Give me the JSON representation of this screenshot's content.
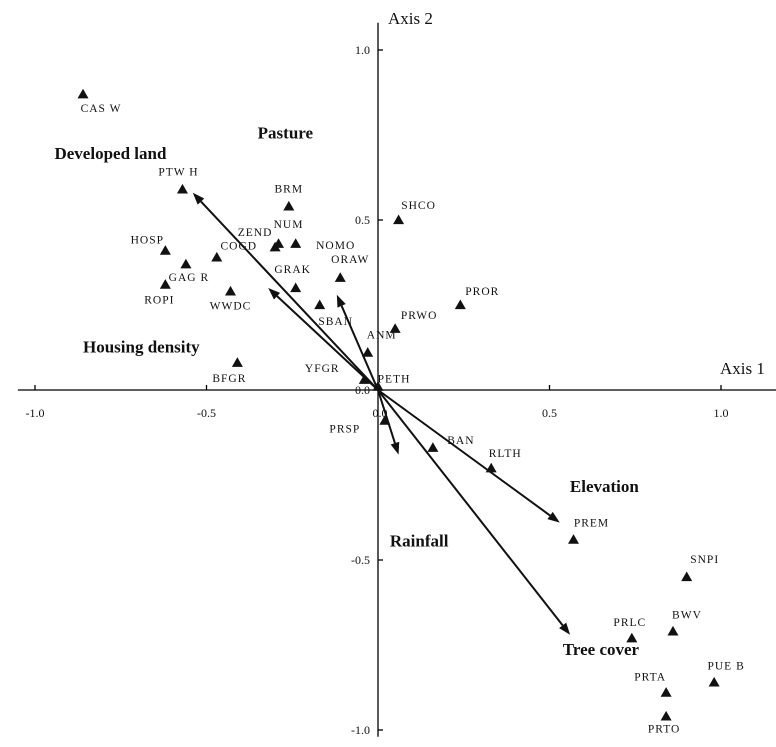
{
  "chart_data": {
    "type": "scatter",
    "title": "",
    "xlabel": "Axis 1",
    "ylabel": "Axis 2",
    "xlim": [
      -1.05,
      1.05
    ],
    "ylim": [
      -1.02,
      1.08
    ],
    "x_ticks": [
      {
        "value": -1.0,
        "label": "-1.0"
      },
      {
        "value": -0.5,
        "label": "-0.5"
      },
      {
        "value": 0.0,
        "label": "0.0"
      },
      {
        "value": 0.5,
        "label": "0.5"
      },
      {
        "value": 1.0,
        "label": "1.0"
      }
    ],
    "y_ticks": [
      {
        "value": 1.0,
        "label": "1.0"
      },
      {
        "value": 0.5,
        "label": "0.5"
      },
      {
        "value": 0.0,
        "label": "0.0"
      },
      {
        "value": -0.5,
        "label": "-0.5"
      },
      {
        "value": -1.0,
        "label": "-1.0"
      }
    ],
    "grid": false,
    "series": [
      {
        "marker": "triangle",
        "points": [
          {
            "label": "CAS W",
            "x": -0.86,
            "y": 0.87
          },
          {
            "label": "PTW H",
            "x": -0.57,
            "y": 0.59
          },
          {
            "label": "BRM",
            "x": -0.26,
            "y": 0.54
          },
          {
            "label": "SHCO",
            "x": 0.06,
            "y": 0.5
          },
          {
            "label": "ZEND",
            "x": -0.3,
            "y": 0.42
          },
          {
            "label": "NUM",
            "x": -0.29,
            "y": 0.43
          },
          {
            "label": "NOMO",
            "x": -0.24,
            "y": 0.43
          },
          {
            "label": "HOSP",
            "x": -0.62,
            "y": 0.41
          },
          {
            "label": "GAG R",
            "x": -0.56,
            "y": 0.37
          },
          {
            "label": "COGD",
            "x": -0.47,
            "y": 0.39
          },
          {
            "label": "GRAK",
            "x": -0.24,
            "y": 0.3
          },
          {
            "label": "ORAW",
            "x": -0.11,
            "y": 0.33
          },
          {
            "label": "ROPI",
            "x": -0.62,
            "y": 0.31
          },
          {
            "label": "WWDC",
            "x": -0.43,
            "y": 0.29
          },
          {
            "label": "SBAN",
            "x": -0.17,
            "y": 0.25
          },
          {
            "label": "PROR",
            "x": 0.24,
            "y": 0.25
          },
          {
            "label": "PRWO",
            "x": 0.05,
            "y": 0.18
          },
          {
            "label": "BFGR",
            "x": -0.41,
            "y": 0.08
          },
          {
            "label": "ANM",
            "x": -0.03,
            "y": 0.11
          },
          {
            "label": "YFGR",
            "x": -0.04,
            "y": 0.03
          },
          {
            "label": "PETH",
            "x": 0.0,
            "y": 0.01
          },
          {
            "label": "PRSP",
            "x": 0.02,
            "y": -0.09
          },
          {
            "label": "BAN",
            "x": 0.16,
            "y": -0.17
          },
          {
            "label": "RLTH",
            "x": 0.33,
            "y": -0.23
          },
          {
            "label": "PREM",
            "x": 0.57,
            "y": -0.44
          },
          {
            "label": "SNPI",
            "x": 0.9,
            "y": -0.55
          },
          {
            "label": "PRLC",
            "x": 0.74,
            "y": -0.73
          },
          {
            "label": "BWV",
            "x": 0.86,
            "y": -0.71
          },
          {
            "label": "PRTA",
            "x": 0.84,
            "y": -0.89
          },
          {
            "label": "PUE B",
            "x": 0.98,
            "y": -0.86
          },
          {
            "label": "PRTO",
            "x": 0.84,
            "y": -0.96
          }
        ]
      }
    ],
    "vectors": [
      {
        "label": "Pasture",
        "x": -0.12,
        "y": 0.28
      },
      {
        "label": "Developed land",
        "x": -0.54,
        "y": 0.58
      },
      {
        "label": "Housing density",
        "x": -0.32,
        "y": 0.3
      },
      {
        "label": "Rainfall",
        "x": 0.06,
        "y": -0.19
      },
      {
        "label": "Elevation",
        "x": 0.53,
        "y": -0.39
      },
      {
        "label": "Tree cover",
        "x": 0.56,
        "y": -0.72
      }
    ],
    "colors": {
      "ink": "#111111",
      "background": "#ffffff"
    }
  }
}
